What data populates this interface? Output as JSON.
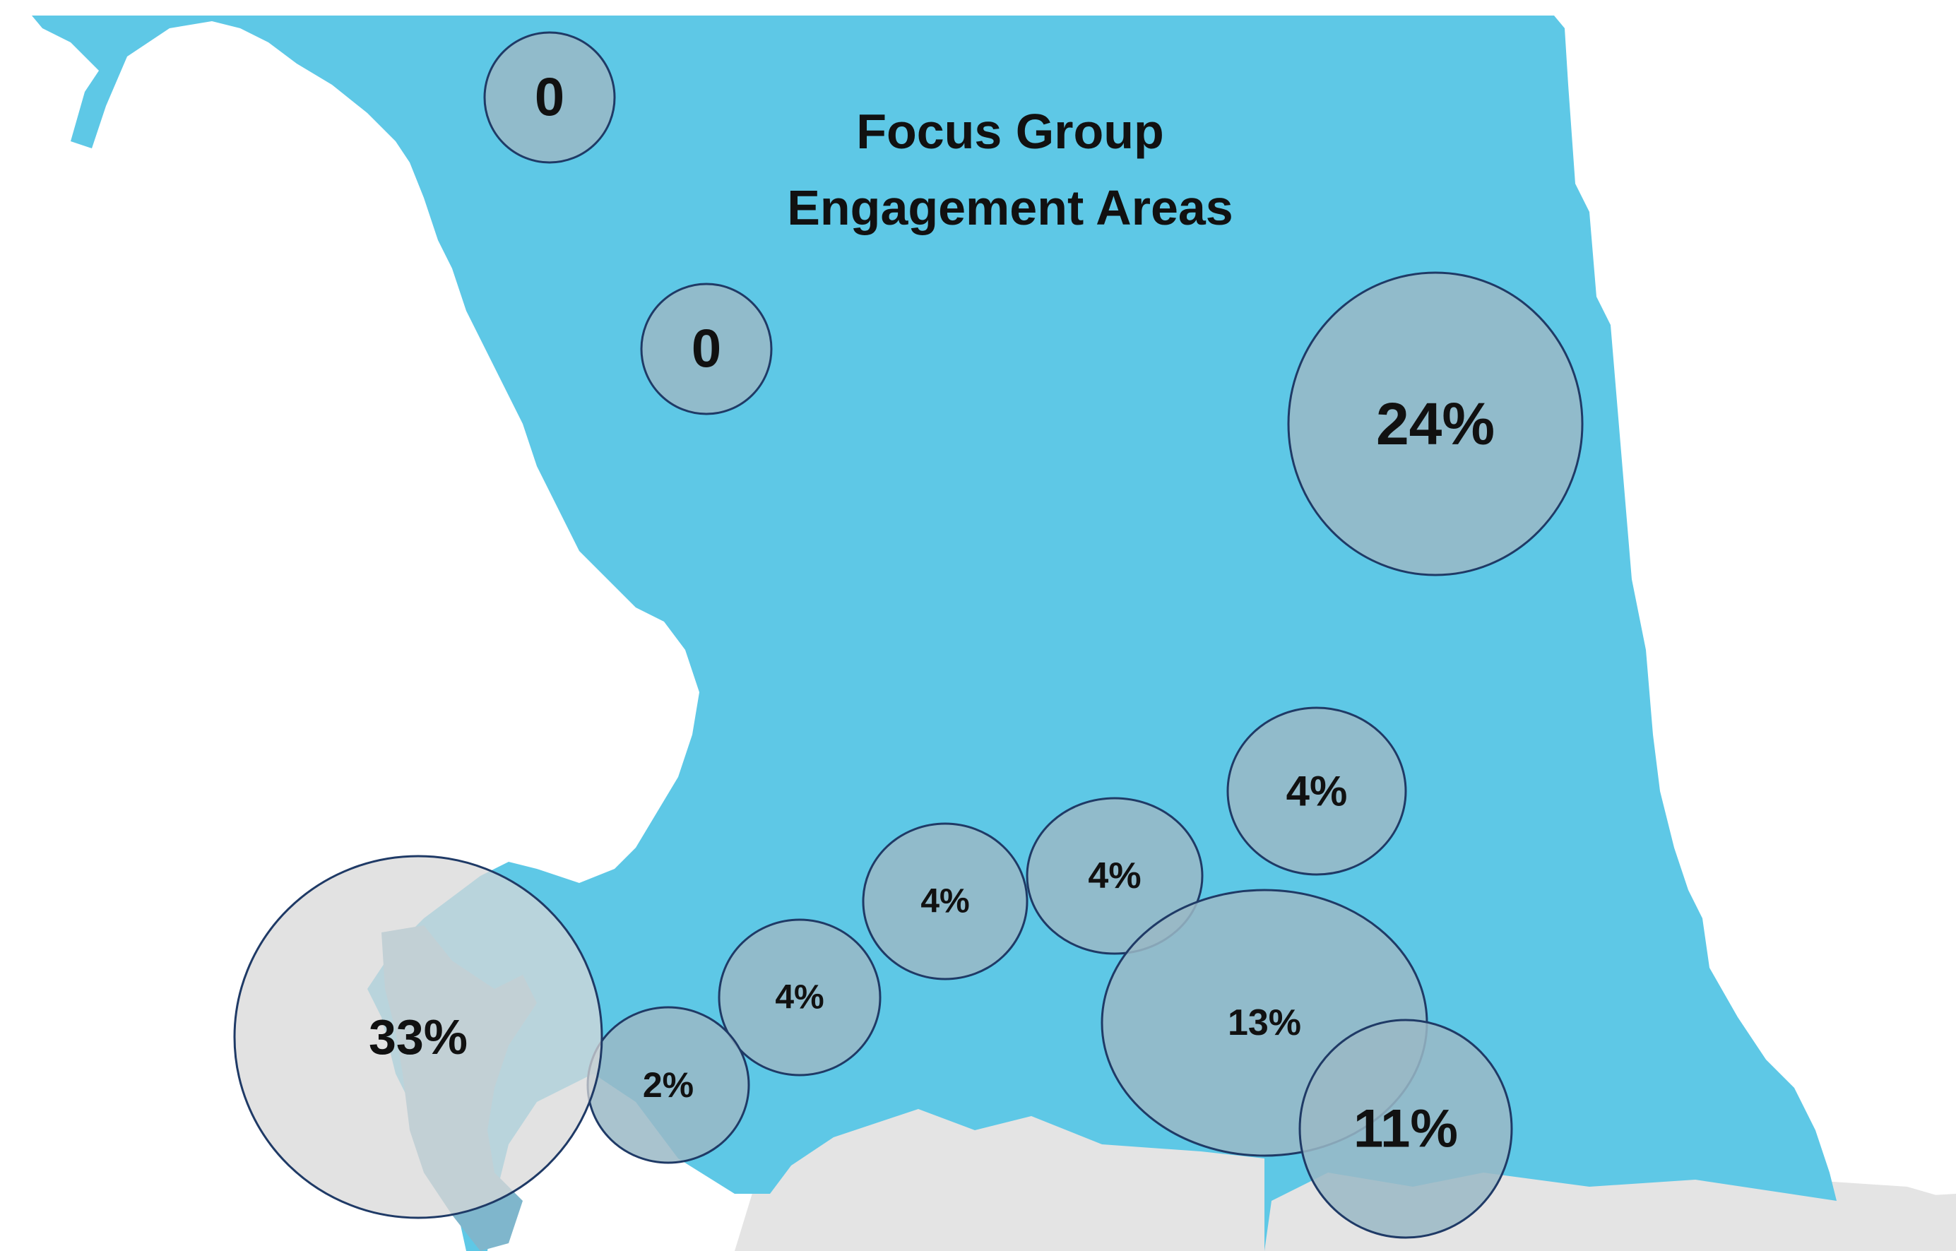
{
  "map": {
    "title_line1": "Focus Group",
    "title_line2": "Engagement Areas",
    "colors": {
      "region_fill": "#5ec8e6",
      "neighbor_fill": "#e4e4e4",
      "bubble_fill": "#9ab8c6",
      "bubble_stroke": "#1f3a66",
      "background": "#ffffff"
    },
    "areas": [
      {
        "id": "far-northwest",
        "label": "0"
      },
      {
        "id": "northwest",
        "label": "0"
      },
      {
        "id": "northeast",
        "label": "24%"
      },
      {
        "id": "east-central",
        "label": "4%"
      },
      {
        "id": "central-east",
        "label": "4%"
      },
      {
        "id": "central",
        "label": "4%"
      },
      {
        "id": "central-west",
        "label": "4%"
      },
      {
        "id": "southwest-coast",
        "label": "2%"
      },
      {
        "id": "island",
        "label": "33%"
      },
      {
        "id": "south-central",
        "label": "13%"
      },
      {
        "id": "southeast",
        "label": "11%"
      }
    ]
  }
}
